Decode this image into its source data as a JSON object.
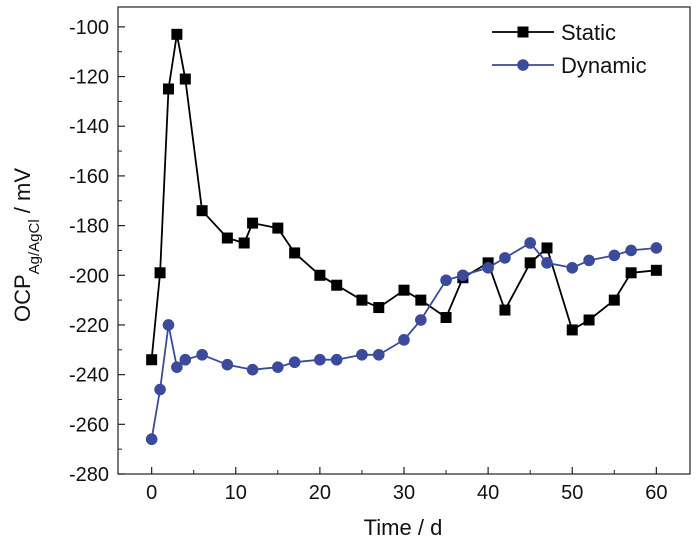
{
  "chart_data": {
    "type": "line",
    "xlabel": "Time / d",
    "ylabel": {
      "main": "OCP",
      "sub": "Ag/AgCl",
      "unit": " / mV"
    },
    "xlim": [
      -4,
      64
    ],
    "ylim": [
      -280,
      -92
    ],
    "xticks": [
      0,
      10,
      20,
      30,
      40,
      50,
      60
    ],
    "yticks": [
      -280,
      -260,
      -240,
      -220,
      -200,
      -180,
      -160,
      -140,
      -120,
      -100
    ],
    "grid": false,
    "legend_position": "top-right",
    "series": [
      {
        "name": "Static",
        "color": "#000000",
        "marker": "square",
        "x": [
          0,
          1,
          2,
          3,
          4,
          6,
          9,
          11,
          12,
          15,
          17,
          20,
          22,
          25,
          27,
          30,
          32,
          35,
          37,
          40,
          42,
          45,
          47,
          50,
          52,
          55,
          57,
          60
        ],
        "y": [
          -234,
          -199,
          -125,
          -103,
          -121,
          -174,
          -185,
          -187,
          -179,
          -181,
          -191,
          -200,
          -204,
          -210,
          -213,
          -206,
          -210,
          -217,
          -201,
          -195,
          -214,
          -195,
          -189,
          -222,
          -218,
          -210,
          -199,
          -198
        ]
      },
      {
        "name": "Dynamic",
        "color": "#3b4a9a",
        "marker": "circle",
        "x": [
          0,
          1,
          2,
          3,
          4,
          6,
          9,
          12,
          15,
          17,
          20,
          22,
          25,
          27,
          30,
          32,
          35,
          37,
          40,
          42,
          45,
          47,
          50,
          52,
          55,
          57,
          60
        ],
        "y": [
          -266,
          -246,
          -220,
          -237,
          -234,
          -232,
          -236,
          -238,
          -237,
          -235,
          -234,
          -234,
          -232,
          -232,
          -226,
          -218,
          -202,
          -200,
          -197,
          -193,
          -187,
          -195,
          -197,
          -194,
          -192,
          -190,
          -189
        ]
      }
    ]
  }
}
